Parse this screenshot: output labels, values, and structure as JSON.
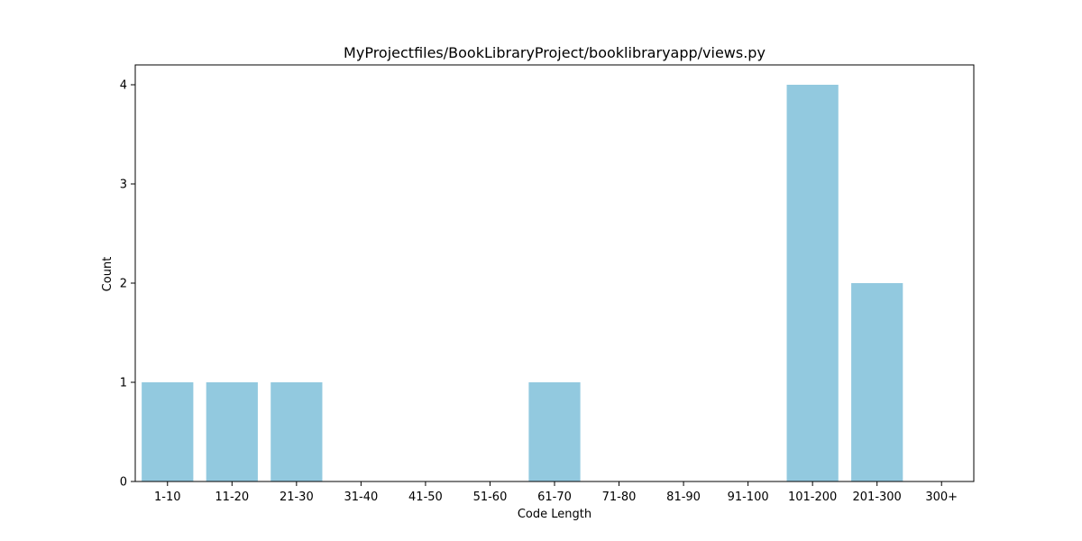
{
  "chart_data": {
    "type": "bar",
    "title": "MyProjectfiles/BookLibraryProject/booklibraryapp/views.py",
    "xlabel": "Code Length",
    "ylabel": "Count",
    "categories": [
      "1-10",
      "11-20",
      "21-30",
      "31-40",
      "41-50",
      "51-60",
      "61-70",
      "71-80",
      "81-90",
      "91-100",
      "101-200",
      "201-300",
      "300+"
    ],
    "values": [
      1,
      1,
      1,
      0,
      0,
      0,
      1,
      0,
      0,
      0,
      4,
      2,
      0
    ],
    "ylim": [
      0,
      4.2
    ],
    "yticks": [
      0,
      1,
      2,
      3,
      4
    ],
    "grid": false,
    "legend": "none",
    "colors": {
      "bar": "#92c9df",
      "axis": "#000000",
      "background": "#ffffff"
    }
  }
}
